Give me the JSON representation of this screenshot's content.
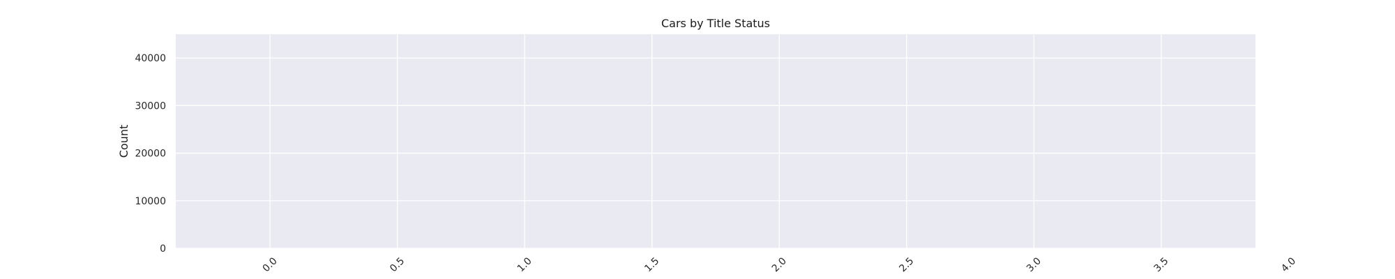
{
  "chart_data": {
    "type": "bar",
    "title": "Cars by Title Status",
    "xlabel": "",
    "ylabel": "Count",
    "xlim": [
      -0.37,
      3.87
    ],
    "ylim": [
      0,
      45000
    ],
    "x_ticks": [
      0.0,
      0.5,
      1.0,
      1.5,
      2.0,
      2.5,
      3.0,
      3.5,
      4.0
    ],
    "x_tick_labels": [
      "0.0",
      "0.5",
      "1.0",
      "1.5",
      "2.0",
      "2.5",
      "3.0",
      "3.5",
      "4.0"
    ],
    "y_ticks": [
      0,
      10000,
      20000,
      30000,
      40000
    ],
    "y_tick_labels": [
      "0",
      "10000",
      "20000",
      "30000",
      "40000"
    ],
    "series": [],
    "grid": true,
    "x_tick_rotation_deg": 45,
    "colors": {
      "plot_background": "#eaeaf2",
      "grid": "#ffffff",
      "text": "#262626"
    }
  }
}
